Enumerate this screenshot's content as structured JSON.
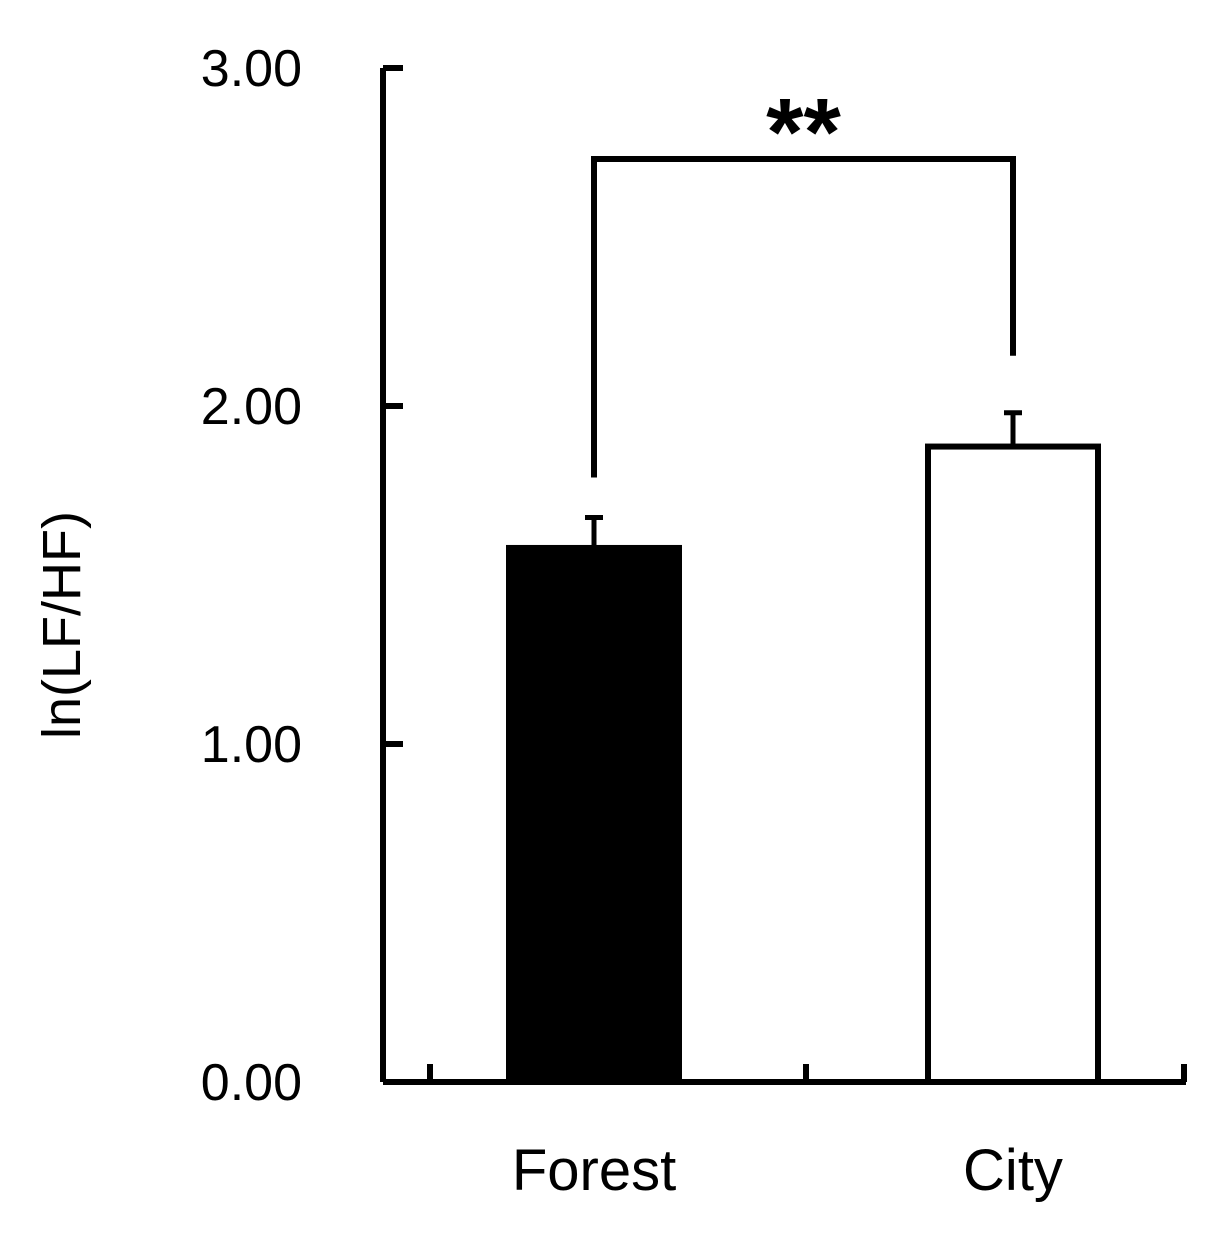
{
  "chart_data": {
    "type": "bar",
    "categories": [
      "Forest",
      "City"
    ],
    "values": [
      1.58,
      1.88
    ],
    "errors": [
      0.09,
      0.1
    ],
    "bar_colors": [
      "#000000",
      "#ffffff"
    ],
    "ylabel": "ln(LF/HF)",
    "ylim": [
      0,
      3
    ],
    "yticks": [
      "0.00",
      "1.00",
      "2.00",
      "3.00"
    ],
    "significance": {
      "label": "**",
      "between": [
        0,
        1
      ]
    },
    "grid": false
  }
}
